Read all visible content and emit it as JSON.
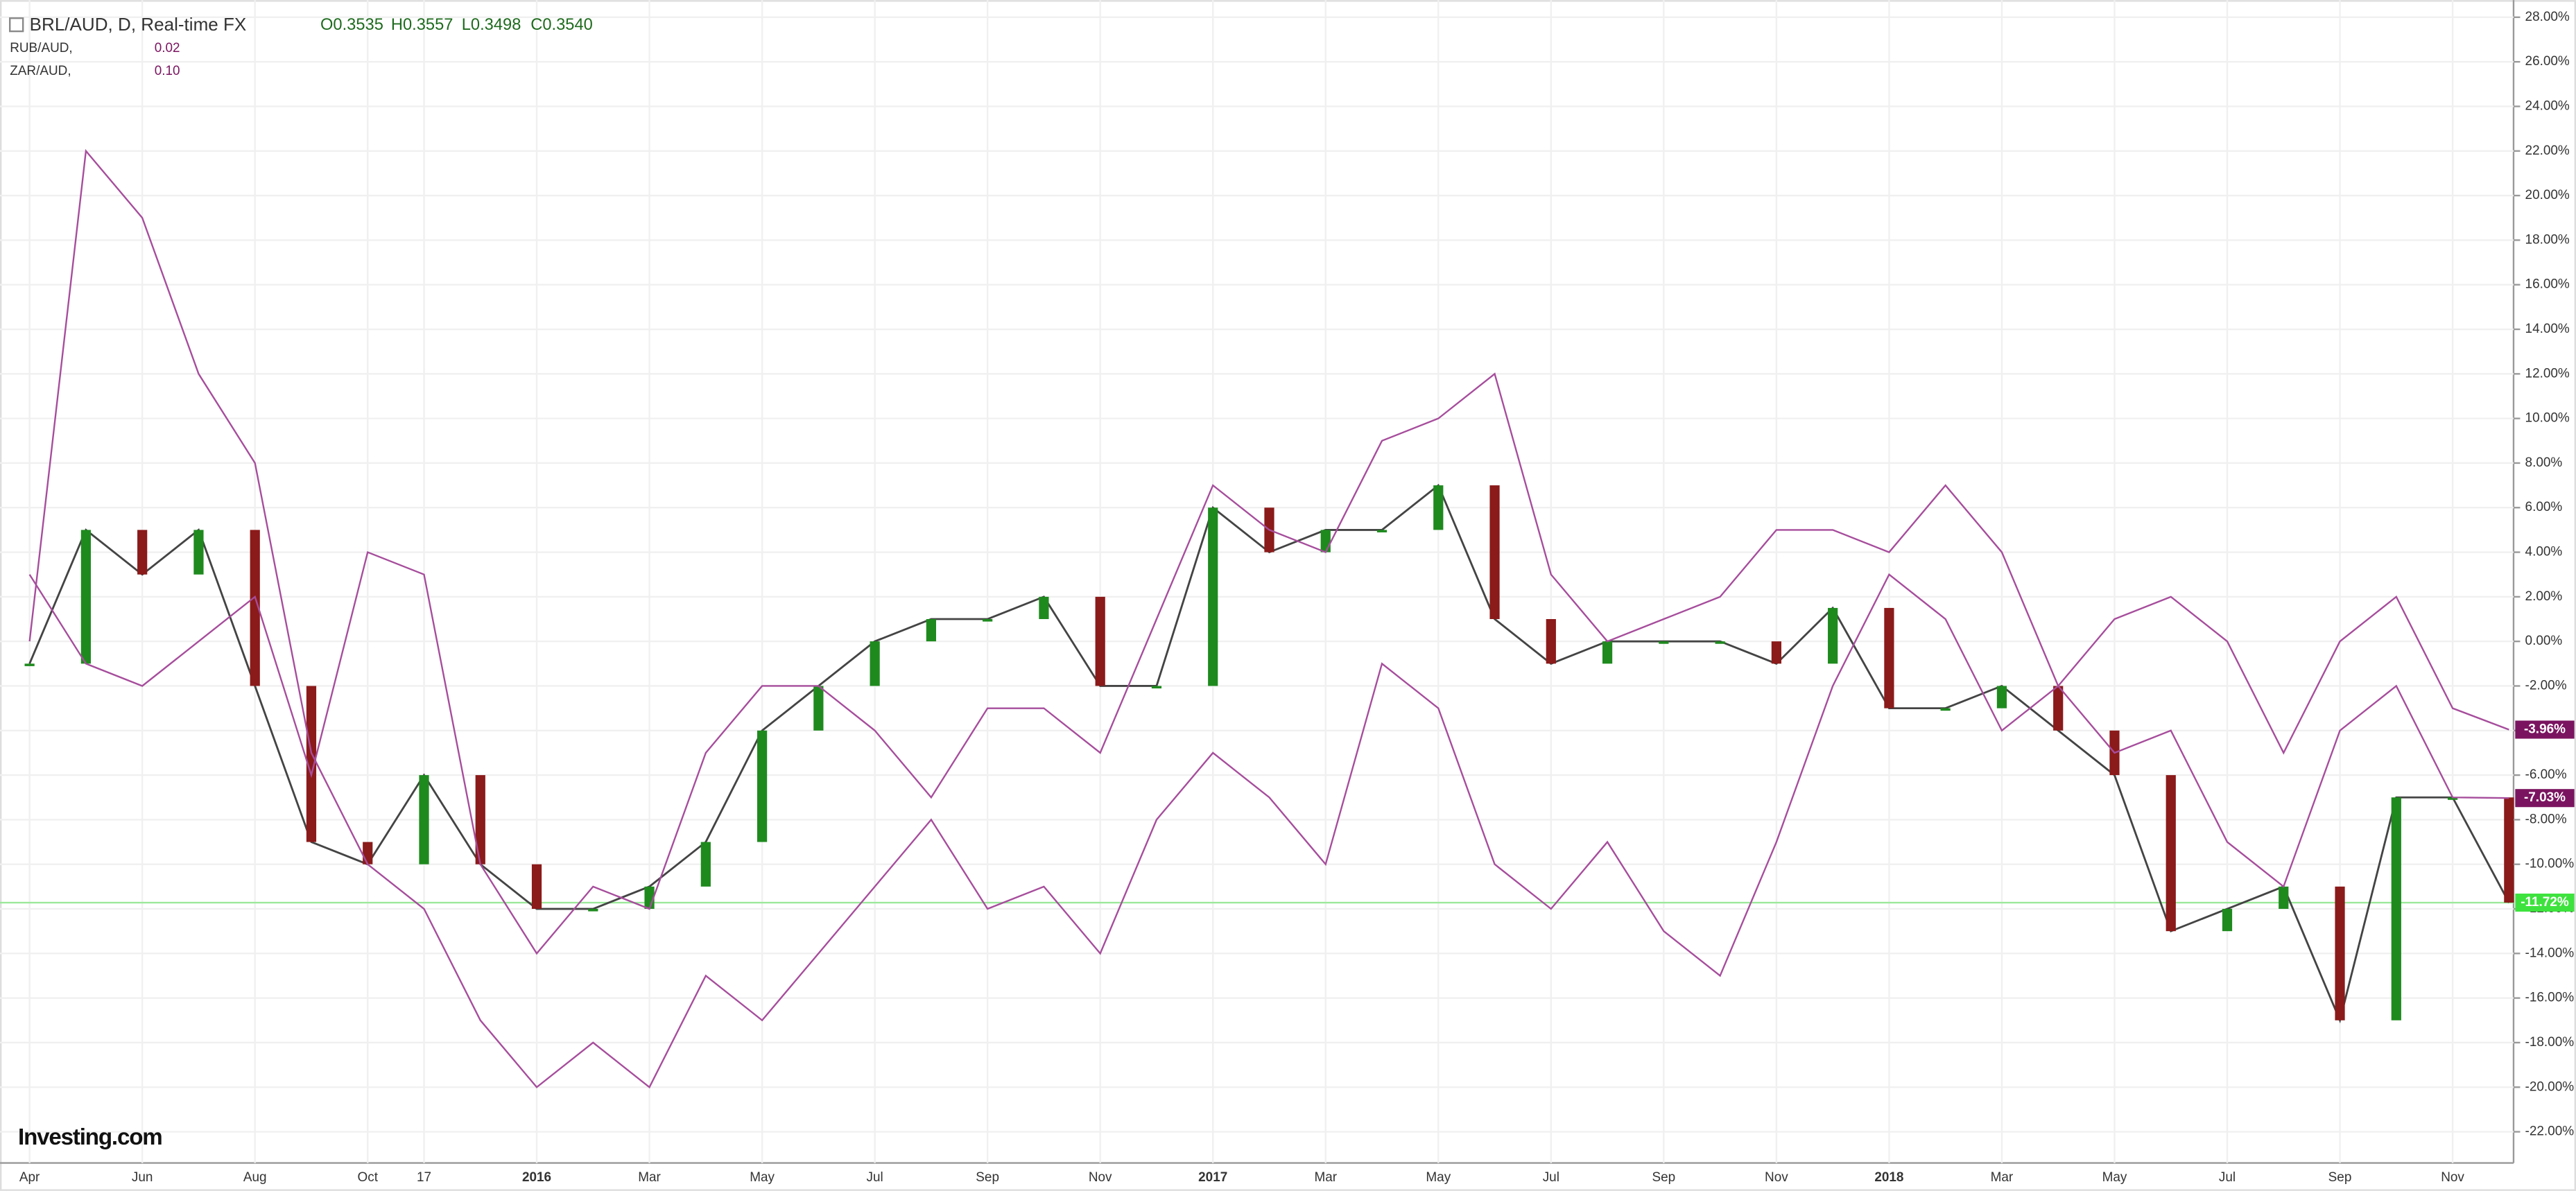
{
  "chart_data": {
    "type": "line",
    "header": {
      "symbol": "BRL/AUD, D, Real-time FX",
      "open": "O0.3535",
      "high": "H0.3557",
      "low": "L0.3498",
      "close": "C0.3540"
    },
    "watermark": "Investing.com",
    "categories": [
      "Apr",
      null,
      "Jun",
      null,
      "Aug",
      null,
      "Oct",
      "17",
      null,
      "2016",
      null,
      "Mar",
      null,
      "May",
      null,
      "Jul",
      null,
      "Sep",
      null,
      "Nov",
      null,
      "2017",
      null,
      "Mar",
      null,
      "May",
      null,
      "Jul",
      null,
      "Sep",
      null,
      "Nov",
      null,
      "2018",
      null,
      "Mar",
      null,
      "May",
      null,
      "Jul",
      null,
      "Sep",
      null,
      "Nov",
      null
    ],
    "series": [
      {
        "name": "BRL/AUD, D, Real-time FX",
        "style": "candle",
        "color": "#1e8a1e",
        "down_color": "#8b1a1a",
        "label_color": "#3ee23e",
        "values": [
          -1,
          5,
          3,
          5,
          -2,
          -9,
          -10,
          -6,
          -10,
          -12,
          -12,
          -11,
          -9,
          -4,
          -2,
          0,
          1,
          1,
          2,
          -2,
          -2,
          6,
          4,
          5,
          5,
          7,
          1,
          -1,
          0,
          0,
          0,
          -1,
          1.5,
          -3,
          -3,
          -2,
          -4,
          -6,
          -13,
          -12,
          -11,
          -17,
          -7,
          -7,
          -11.72
        ],
        "value_labels": [
          null,
          null,
          null,
          null,
          null,
          null,
          null,
          null,
          null,
          null,
          null,
          null,
          null,
          null,
          null,
          null,
          null,
          null,
          null,
          null,
          null,
          null,
          null,
          null,
          null,
          null,
          null,
          null,
          null,
          null,
          null,
          null,
          null,
          null,
          null,
          null,
          null,
          null,
          null,
          null,
          null,
          null,
          null,
          null,
          "-11.72%"
        ]
      },
      {
        "name": "RUB/AUD,",
        "legend_value": "0.02",
        "style": "line",
        "color": "#a64d9c",
        "label_color": "#7b1460",
        "values": [
          0,
          22,
          19,
          12,
          8,
          -5,
          -10,
          -12,
          -17,
          -20,
          -18,
          -20,
          -15,
          -17,
          -14,
          -11,
          -8,
          -12,
          -11,
          -14,
          -8,
          -5,
          -7,
          -10,
          -1,
          -3,
          -10,
          -12,
          -9,
          -13,
          -15,
          -9,
          -2,
          3,
          1,
          -4,
          -2,
          -5,
          -4,
          -9,
          -11,
          -4,
          -2,
          -7,
          -7.03
        ],
        "value_labels": [
          null,
          null,
          null,
          null,
          null,
          null,
          null,
          null,
          null,
          null,
          null,
          null,
          null,
          null,
          null,
          null,
          null,
          null,
          null,
          null,
          null,
          null,
          null,
          null,
          null,
          null,
          null,
          null,
          null,
          null,
          null,
          null,
          null,
          null,
          null,
          null,
          null,
          null,
          null,
          null,
          null,
          null,
          null,
          null,
          "-7.03%"
        ]
      },
      {
        "name": "ZAR/AUD,",
        "legend_value": "0.10",
        "style": "line",
        "color": "#a64d9c",
        "label_color": "#7b1460",
        "values": [
          3,
          -1,
          -2,
          0,
          2,
          -6,
          4,
          3,
          -10,
          -14,
          -11,
          -12,
          -5,
          -2,
          -2,
          -4,
          -7,
          -3,
          -3,
          -5,
          1,
          7,
          5,
          4,
          9,
          10,
          12,
          3,
          0,
          1,
          2,
          5,
          5,
          4,
          7,
          4,
          -2,
          1,
          2,
          0,
          -5,
          0,
          2,
          -3,
          -3.96
        ],
        "value_labels": [
          null,
          null,
          null,
          null,
          null,
          null,
          null,
          null,
          null,
          null,
          null,
          null,
          null,
          null,
          null,
          null,
          null,
          null,
          null,
          null,
          null,
          null,
          null,
          null,
          null,
          null,
          null,
          null,
          null,
          null,
          null,
          null,
          null,
          null,
          null,
          null,
          null,
          null,
          null,
          null,
          null,
          null,
          null,
          null,
          "-3.96%"
        ]
      }
    ],
    "ylim": [
      -23.4,
      28.4
    ],
    "yticks": [
      {
        "value": 28,
        "label": "28.00%"
      },
      {
        "value": 26,
        "label": "26.00%"
      },
      {
        "value": 24,
        "label": "24.00%"
      },
      {
        "value": 22,
        "label": "22.00%"
      },
      {
        "value": 20,
        "label": "20.00%"
      },
      {
        "value": 18,
        "label": "18.00%"
      },
      {
        "value": 16,
        "label": "16.00%"
      },
      {
        "value": 14,
        "label": "14.00%"
      },
      {
        "value": 12,
        "label": "12.00%"
      },
      {
        "value": 10,
        "label": "10.00%"
      },
      {
        "value": 8,
        "label": "8.00%"
      },
      {
        "value": 6,
        "label": "6.00%"
      },
      {
        "value": 4,
        "label": "4.00%"
      },
      {
        "value": 2,
        "label": "2.00%"
      },
      {
        "value": 0,
        "label": "0.00%"
      },
      {
        "value": -2,
        "label": "-2.00%"
      },
      {
        "value": -4,
        "label": "-4.00%"
      },
      {
        "value": -6,
        "label": "-6.00%"
      },
      {
        "value": -8,
        "label": "-8.00%"
      },
      {
        "value": -10,
        "label": "-10.00%"
      },
      {
        "value": -12,
        "label": "-12.00%"
      },
      {
        "value": -14,
        "label": "-14.00%"
      },
      {
        "value": -16,
        "label": "-16.00%"
      },
      {
        "value": -18,
        "label": "-18.00%"
      },
      {
        "value": -20,
        "label": "-20.00%"
      },
      {
        "value": -22,
        "label": "-22.00%"
      }
    ],
    "grid": true
  }
}
